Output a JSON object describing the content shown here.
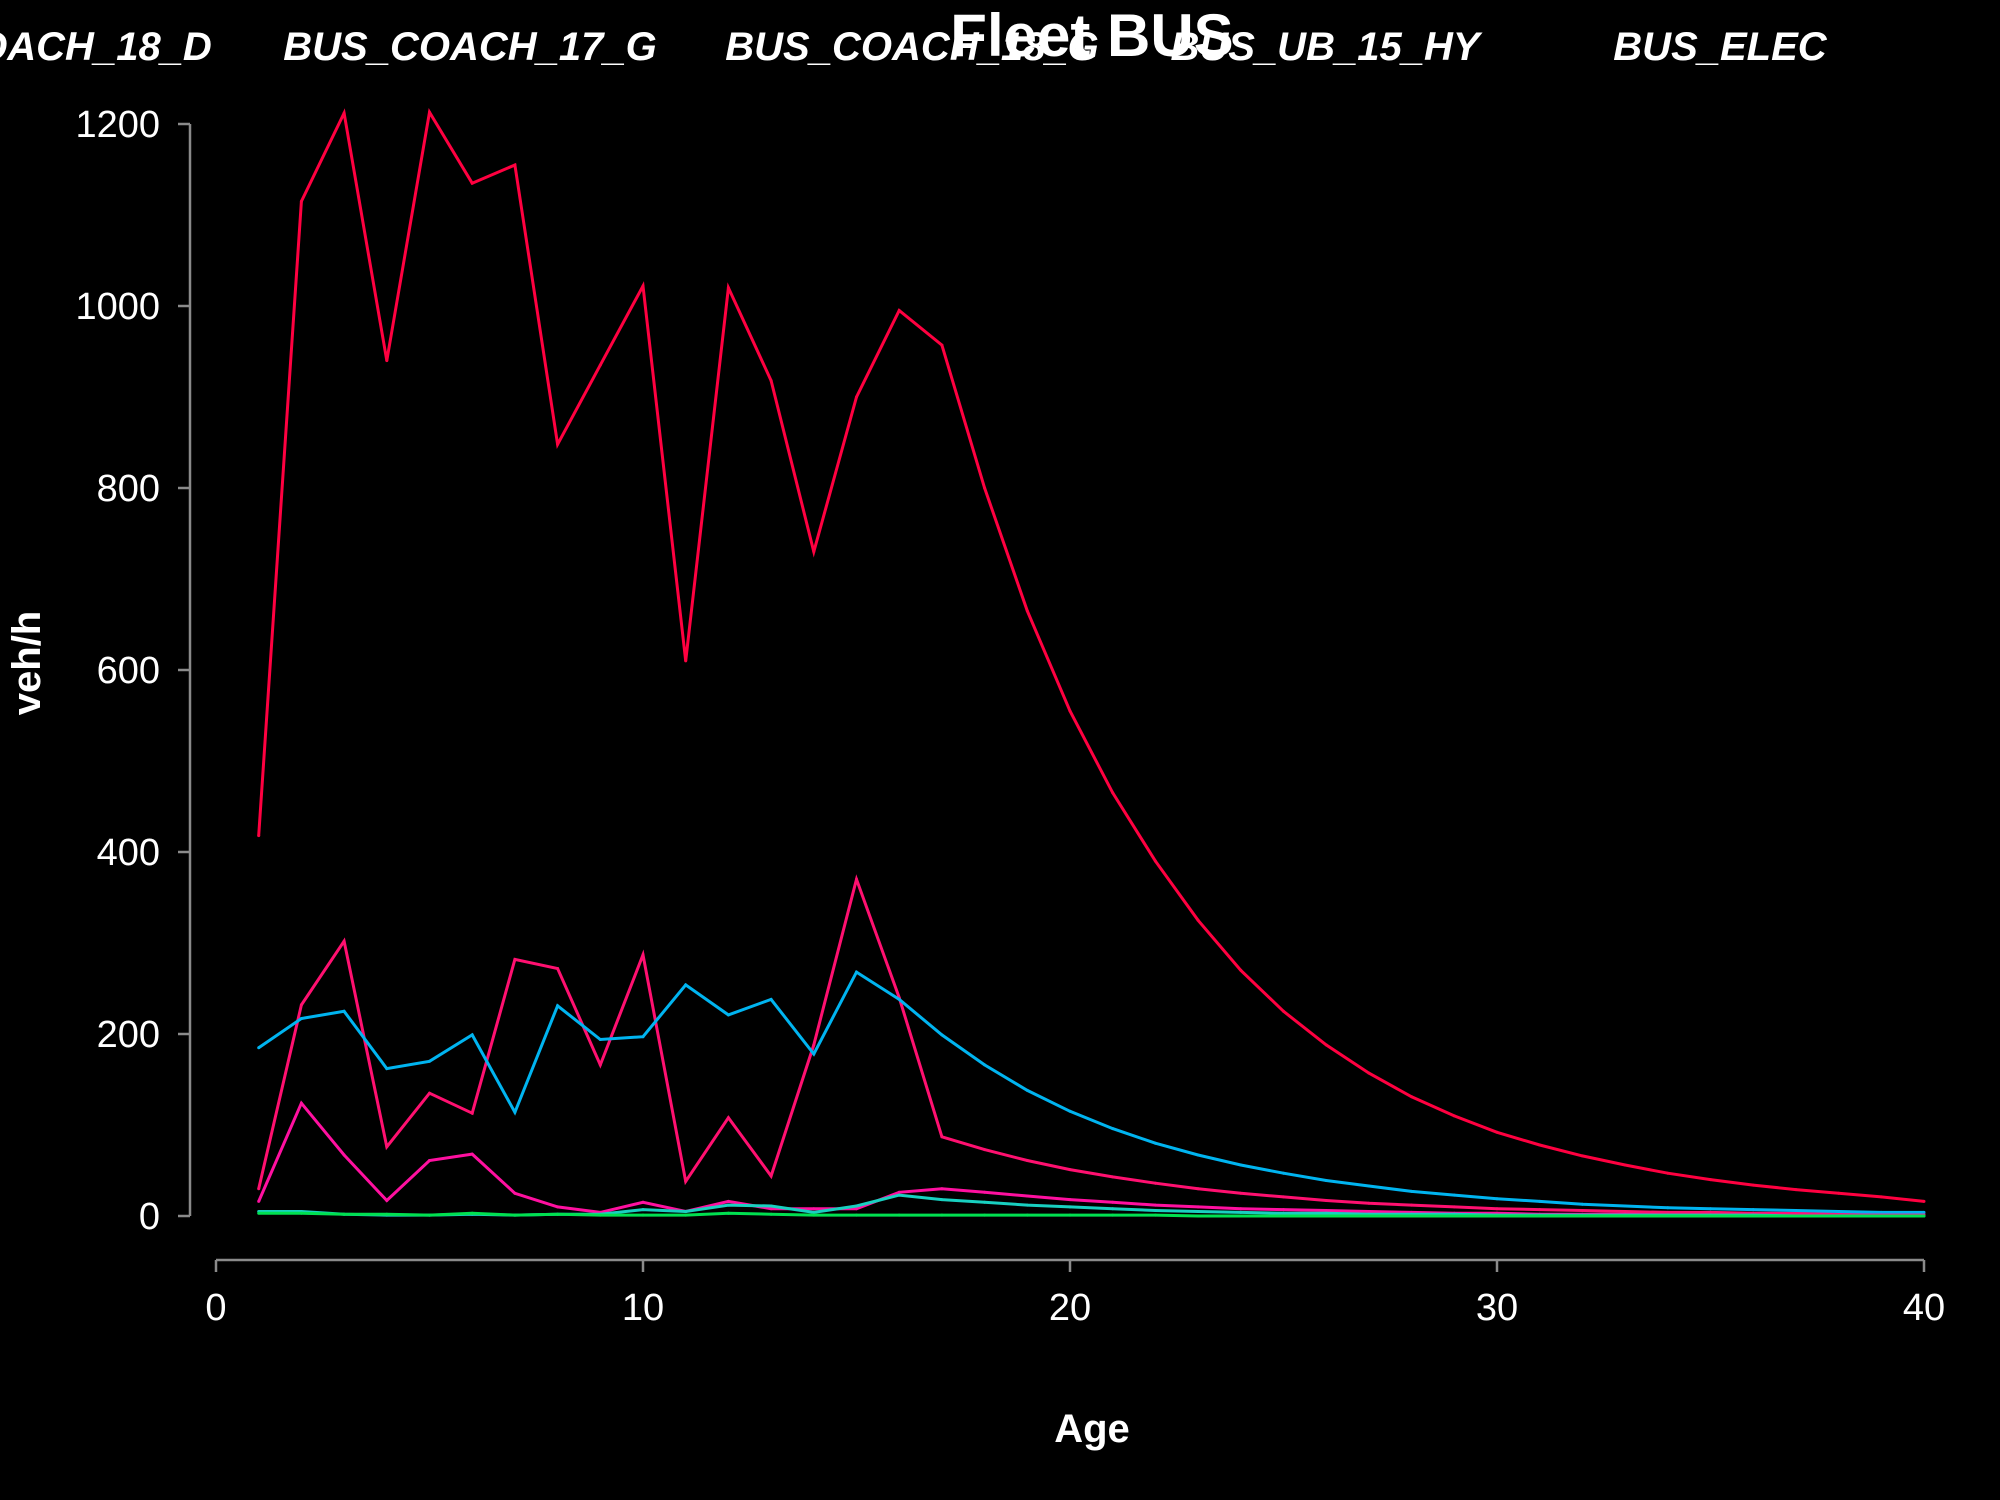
{
  "chart_data": {
    "type": "line",
    "title": "Fleet BUS",
    "xlabel": "Age",
    "ylabel": "veh/h",
    "xlim": [
      0,
      40
    ],
    "ylim": [
      0,
      1200
    ],
    "x_ticks": [
      0,
      10,
      20,
      30,
      40
    ],
    "y_ticks": [
      0,
      200,
      400,
      600,
      800,
      1000,
      1200
    ],
    "legend_position": "top",
    "legend_entries": [
      "OACH_18_D",
      "BUS_COACH_17_G",
      "BUS_COACH_18_G",
      "BUS_UB_15_HY",
      "BUS_ELEC"
    ],
    "x": [
      1,
      2,
      3,
      4,
      5,
      6,
      7,
      8,
      9,
      10,
      11,
      12,
      13,
      14,
      15,
      16,
      17,
      18,
      19,
      20,
      21,
      22,
      23,
      24,
      25,
      26,
      27,
      28,
      29,
      30,
      31,
      32,
      33,
      34,
      35,
      36,
      37,
      38,
      39,
      40
    ],
    "series": [
      {
        "color": "#ff0040",
        "values": [
          418,
          1115,
          1212,
          940,
          1213,
          1135,
          1155,
          848,
          935,
          1022,
          610,
          1020,
          918,
          730,
          900,
          995,
          957,
          800,
          665,
          555,
          465,
          390,
          325,
          270,
          225,
          188,
          157,
          131,
          110,
          92,
          78,
          66,
          56,
          47,
          40,
          34,
          29,
          25,
          21,
          16
        ]
      },
      {
        "color": "#ff1070",
        "values": [
          30,
          232,
          302,
          76,
          135,
          113,
          282,
          272,
          166,
          287,
          38,
          108,
          44,
          188,
          370,
          240,
          87,
          73,
          61,
          51,
          43,
          36,
          30,
          25,
          21,
          17,
          14,
          12,
          10,
          8,
          7,
          6,
          5,
          4,
          4,
          3,
          3,
          2,
          2,
          2
        ]
      },
      {
        "color": "#00b4f0",
        "values": [
          185,
          217,
          225,
          162,
          170,
          199,
          114,
          231,
          194,
          197,
          254,
          221,
          238,
          178,
          268,
          238,
          199,
          166,
          138,
          115,
          96,
          80,
          67,
          56,
          47,
          39,
          33,
          27,
          23,
          19,
          16,
          13,
          11,
          9,
          8,
          7,
          6,
          5,
          4,
          4
        ]
      },
      {
        "color": "#ff10a0",
        "values": [
          16,
          124,
          67,
          17,
          61,
          68,
          25,
          10,
          4,
          15,
          5,
          16,
          8,
          8,
          8,
          26,
          30,
          26,
          22,
          18,
          15,
          12,
          10,
          8,
          7,
          6,
          5,
          4,
          3,
          3,
          2,
          2,
          2,
          1,
          1,
          1,
          1,
          1,
          1,
          1
        ]
      },
      {
        "color": "#18d0c0",
        "values": [
          5,
          5,
          2,
          1,
          1,
          2,
          1,
          2,
          2,
          7,
          5,
          12,
          11,
          4,
          11,
          23,
          18,
          15,
          12,
          10,
          8,
          6,
          5,
          4,
          3,
          3,
          2,
          2,
          2,
          1,
          1,
          1,
          1,
          1,
          1,
          1,
          0,
          0,
          0,
          0
        ]
      },
      {
        "color": "#00e050",
        "values": [
          3,
          3,
          2,
          2,
          1,
          3,
          1,
          2,
          1,
          1,
          1,
          3,
          2,
          1,
          1,
          1,
          1,
          1,
          1,
          1,
          1,
          1,
          0,
          0,
          0,
          0,
          0,
          0,
          0,
          0,
          0,
          0,
          0,
          0,
          0,
          0,
          0,
          0,
          0,
          0
        ]
      }
    ]
  }
}
